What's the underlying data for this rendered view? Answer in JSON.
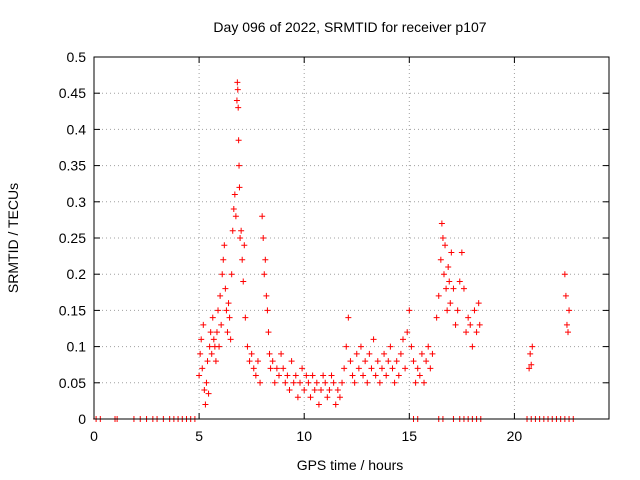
{
  "chart_data": {
    "type": "scatter",
    "title": "Day 096 of 2022, SRMTID for receiver p107",
    "xlabel": "GPS time / hours",
    "ylabel": "SRMTID / TECUs",
    "xlim": [
      0,
      24.5
    ],
    "ylim": [
      0,
      0.5
    ],
    "xticks": [
      0,
      5,
      10,
      15,
      20
    ],
    "xtick_labels": [
      "0",
      "5",
      "10",
      "15",
      "20"
    ],
    "yticks": [
      0,
      0.05,
      0.1,
      0.15,
      0.2,
      0.25,
      0.3,
      0.35,
      0.4,
      0.45,
      0.5
    ],
    "ytick_labels": [
      "0",
      "0.05",
      "0.1",
      "0.15",
      "0.2",
      "0.25",
      "0.3",
      "0.35",
      "0.4",
      "0.45",
      "0.5"
    ],
    "grid": true,
    "marker": "+",
    "color": "#ff0000",
    "series": [
      {
        "name": "SRMTID",
        "points": [
          [
            0.1,
            0
          ],
          [
            0.3,
            0
          ],
          [
            1.0,
            0
          ],
          [
            1.1,
            0
          ],
          [
            1.9,
            0
          ],
          [
            2.2,
            0
          ],
          [
            2.5,
            0
          ],
          [
            2.8,
            0
          ],
          [
            3.0,
            0
          ],
          [
            3.3,
            0
          ],
          [
            3.6,
            0
          ],
          [
            3.8,
            0
          ],
          [
            4.0,
            0
          ],
          [
            4.2,
            0
          ],
          [
            4.4,
            0
          ],
          [
            4.6,
            0
          ],
          [
            4.8,
            0
          ],
          [
            5.0,
            0.06
          ],
          [
            5.05,
            0.09
          ],
          [
            5.1,
            0.11
          ],
          [
            5.15,
            0.07
          ],
          [
            5.2,
            0.13
          ],
          [
            5.25,
            0.04
          ],
          [
            5.3,
            0.02
          ],
          [
            5.35,
            0.05
          ],
          [
            5.4,
            0.08
          ],
          [
            5.45,
            0.035
          ],
          [
            5.5,
            0.1
          ],
          [
            5.55,
            0.12
          ],
          [
            5.6,
            0.09
          ],
          [
            5.65,
            0.14
          ],
          [
            5.7,
            0.11
          ],
          [
            5.75,
            0.1
          ],
          [
            5.8,
            0.08
          ],
          [
            5.85,
            0.12
          ],
          [
            5.9,
            0.15
          ],
          [
            5.95,
            0.1
          ],
          [
            6.0,
            0.17
          ],
          [
            6.05,
            0.13
          ],
          [
            6.1,
            0.2
          ],
          [
            6.15,
            0.22
          ],
          [
            6.2,
            0.24
          ],
          [
            6.25,
            0.18
          ],
          [
            6.3,
            0.15
          ],
          [
            6.35,
            0.12
          ],
          [
            6.4,
            0.16
          ],
          [
            6.45,
            0.14
          ],
          [
            6.5,
            0.11
          ],
          [
            6.55,
            0.2
          ],
          [
            6.6,
            0.26
          ],
          [
            6.65,
            0.29
          ],
          [
            6.7,
            0.31
          ],
          [
            6.75,
            0.28
          ],
          [
            6.8,
            0.44
          ],
          [
            6.82,
            0.465
          ],
          [
            6.84,
            0.455
          ],
          [
            6.86,
            0.43
          ],
          [
            6.88,
            0.385
          ],
          [
            6.9,
            0.35
          ],
          [
            6.92,
            0.32
          ],
          [
            6.95,
            0.25
          ],
          [
            7.0,
            0.26
          ],
          [
            7.05,
            0.22
          ],
          [
            7.1,
            0.19
          ],
          [
            7.15,
            0.24
          ],
          [
            7.2,
            0.14
          ],
          [
            7.3,
            0.1
          ],
          [
            7.4,
            0.08
          ],
          [
            7.5,
            0.09
          ],
          [
            7.6,
            0.07
          ],
          [
            7.7,
            0.06
          ],
          [
            7.8,
            0.08
          ],
          [
            7.9,
            0.05
          ],
          [
            8.0,
            0.28
          ],
          [
            8.05,
            0.25
          ],
          [
            8.1,
            0.2
          ],
          [
            8.15,
            0.22
          ],
          [
            8.2,
            0.17
          ],
          [
            8.25,
            0.15
          ],
          [
            8.3,
            0.12
          ],
          [
            8.35,
            0.09
          ],
          [
            8.4,
            0.07
          ],
          [
            8.5,
            0.08
          ],
          [
            8.6,
            0.05
          ],
          [
            8.7,
            0.07
          ],
          [
            8.8,
            0.06
          ],
          [
            8.9,
            0.09
          ],
          [
            9.0,
            0.07
          ],
          [
            9.1,
            0.05
          ],
          [
            9.2,
            0.06
          ],
          [
            9.3,
            0.04
          ],
          [
            9.4,
            0.08
          ],
          [
            9.5,
            0.05
          ],
          [
            9.6,
            0.06
          ],
          [
            9.7,
            0.03
          ],
          [
            9.8,
            0.05
          ],
          [
            9.9,
            0.07
          ],
          [
            10.0,
            0.04
          ],
          [
            10.1,
            0.06
          ],
          [
            10.2,
            0.05
          ],
          [
            10.3,
            0.03
          ],
          [
            10.4,
            0.06
          ],
          [
            10.5,
            0.04
          ],
          [
            10.6,
            0.05
          ],
          [
            10.7,
            0.02
          ],
          [
            10.8,
            0.04
          ],
          [
            10.9,
            0.06
          ],
          [
            11.0,
            0.05
          ],
          [
            11.1,
            0.03
          ],
          [
            11.2,
            0.04
          ],
          [
            11.3,
            0.06
          ],
          [
            11.4,
            0.05
          ],
          [
            11.5,
            0.02
          ],
          [
            11.6,
            0.04
          ],
          [
            11.7,
            0.03
          ],
          [
            11.8,
            0.05
          ],
          [
            11.9,
            0.07
          ],
          [
            12.0,
            0.1
          ],
          [
            12.1,
            0.14
          ],
          [
            12.2,
            0.08
          ],
          [
            12.3,
            0.06
          ],
          [
            12.4,
            0.05
          ],
          [
            12.5,
            0.09
          ],
          [
            12.6,
            0.07
          ],
          [
            12.7,
            0.1
          ],
          [
            12.8,
            0.06
          ],
          [
            12.9,
            0.08
          ],
          [
            13.0,
            0.05
          ],
          [
            13.1,
            0.09
          ],
          [
            13.2,
            0.07
          ],
          [
            13.3,
            0.11
          ],
          [
            13.4,
            0.06
          ],
          [
            13.5,
            0.08
          ],
          [
            13.6,
            0.05
          ],
          [
            13.7,
            0.07
          ],
          [
            13.8,
            0.09
          ],
          [
            13.9,
            0.06
          ],
          [
            14.0,
            0.08
          ],
          [
            14.1,
            0.1
          ],
          [
            14.2,
            0.07
          ],
          [
            14.3,
            0.05
          ],
          [
            14.4,
            0.08
          ],
          [
            14.5,
            0.06
          ],
          [
            14.6,
            0.09
          ],
          [
            14.7,
            0.11
          ],
          [
            14.8,
            0.07
          ],
          [
            14.9,
            0.12
          ],
          [
            15.0,
            0.15
          ],
          [
            15.1,
            0.1
          ],
          [
            15.2,
            0.08
          ],
          [
            15.3,
            0.05
          ],
          [
            15.4,
            0.07
          ],
          [
            15.5,
            0.06
          ],
          [
            15.6,
            0.09
          ],
          [
            15.7,
            0.05
          ],
          [
            15.8,
            0.08
          ],
          [
            15.9,
            0.1
          ],
          [
            16.0,
            0.07
          ],
          [
            16.1,
            0.09
          ],
          [
            16.3,
            0.14
          ],
          [
            16.4,
            0.17
          ],
          [
            16.5,
            0.22
          ],
          [
            16.55,
            0.27
          ],
          [
            16.6,
            0.25
          ],
          [
            16.65,
            0.2
          ],
          [
            16.7,
            0.24
          ],
          [
            16.75,
            0.18
          ],
          [
            16.8,
            0.15
          ],
          [
            16.85,
            0.21
          ],
          [
            16.9,
            0.19
          ],
          [
            16.95,
            0.16
          ],
          [
            17.0,
            0.23
          ],
          [
            17.1,
            0.18
          ],
          [
            17.2,
            0.13
          ],
          [
            17.3,
            0.15
          ],
          [
            17.4,
            0.19
          ],
          [
            17.5,
            0.23
          ],
          [
            17.6,
            0.18
          ],
          [
            17.7,
            0.12
          ],
          [
            17.8,
            0.14
          ],
          [
            17.9,
            0.13
          ],
          [
            18.0,
            0.1
          ],
          [
            18.1,
            0.15
          ],
          [
            18.2,
            0.12
          ],
          [
            18.3,
            0.16
          ],
          [
            18.35,
            0.13
          ],
          [
            20.7,
            0.07
          ],
          [
            20.75,
            0.09
          ],
          [
            20.8,
            0.075
          ],
          [
            20.85,
            0.1
          ],
          [
            22.4,
            0.2
          ],
          [
            22.45,
            0.17
          ],
          [
            22.5,
            0.13
          ],
          [
            22.55,
            0.12
          ],
          [
            22.6,
            0.15
          ],
          [
            16.4,
            0
          ],
          [
            16.6,
            0
          ],
          [
            17.1,
            0
          ],
          [
            17.4,
            0
          ],
          [
            17.6,
            0
          ],
          [
            17.8,
            0
          ],
          [
            18.0,
            0
          ],
          [
            18.2,
            0
          ],
          [
            18.4,
            0
          ],
          [
            20.6,
            0
          ],
          [
            20.8,
            0
          ],
          [
            21.0,
            0
          ],
          [
            21.2,
            0
          ],
          [
            21.4,
            0
          ],
          [
            21.6,
            0
          ],
          [
            21.8,
            0
          ],
          [
            22.0,
            0
          ],
          [
            22.2,
            0
          ],
          [
            22.4,
            0
          ],
          [
            22.6,
            0
          ],
          [
            22.8,
            0
          ],
          [
            15.2,
            0
          ],
          [
            15.4,
            0
          ]
        ]
      }
    ]
  }
}
